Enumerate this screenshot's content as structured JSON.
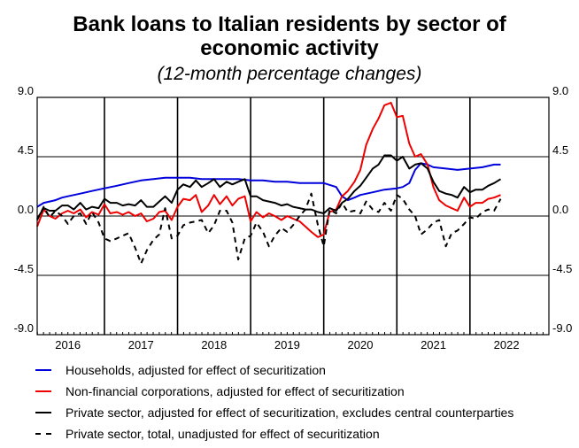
{
  "chart_data": {
    "type": "line",
    "title_line1": "Bank loans to Italian residents by sector of",
    "title_line2": "economic activity",
    "subtitle": "(12-month percentage changes)",
    "ylim": [
      -9.0,
      9.0
    ],
    "y_ticks": [
      "9.0",
      "4.5",
      "0.0",
      "-4.5",
      "-9.0"
    ],
    "y_tick_values": [
      9.0,
      4.5,
      0.0,
      -4.5,
      -9.0
    ],
    "x_range": [
      2015.58,
      2022.58
    ],
    "x_ticks": [
      "2016",
      "2017",
      "2018",
      "2019",
      "2020",
      "2021",
      "2022"
    ],
    "x_tick_values": [
      2016.0,
      2017.0,
      2018.0,
      2019.0,
      2020.0,
      2021.0,
      2022.0
    ],
    "vertical_lines": [
      2016.5,
      2017.5,
      2018.5,
      2019.5,
      2020.5,
      2021.5
    ],
    "grid_y": [
      4.5,
      0.0,
      -4.5
    ],
    "series": [
      {
        "name": "Households, adjusted for effect of securitization",
        "color": "#0000dd",
        "dash": "solid",
        "x": [
          2015.58,
          2015.67,
          2015.75,
          2015.83,
          2015.92,
          2016.0,
          2016.17,
          2016.33,
          2016.5,
          2016.67,
          2016.83,
          2017.0,
          2017.17,
          2017.33,
          2017.5,
          2017.67,
          2017.83,
          2018.0,
          2018.17,
          2018.33,
          2018.5,
          2018.67,
          2018.83,
          2019.0,
          2019.17,
          2019.33,
          2019.5,
          2019.67,
          2019.75,
          2019.83,
          2019.92,
          2020.0,
          2020.17,
          2020.33,
          2020.5,
          2020.58,
          2020.67,
          2020.75,
          2020.83,
          2020.92,
          2021.0,
          2021.17,
          2021.33,
          2021.5,
          2021.67,
          2021.83,
          2021.92
        ],
        "values": [
          0.7,
          1.0,
          1.1,
          1.2,
          1.4,
          1.5,
          1.7,
          1.9,
          2.1,
          2.3,
          2.5,
          2.7,
          2.8,
          2.9,
          2.9,
          2.9,
          2.8,
          2.8,
          2.8,
          2.8,
          2.7,
          2.7,
          2.6,
          2.6,
          2.5,
          2.5,
          2.5,
          2.2,
          1.5,
          1.2,
          1.4,
          1.6,
          1.8,
          2.0,
          2.1,
          2.2,
          2.5,
          3.5,
          4.0,
          3.9,
          3.7,
          3.6,
          3.5,
          3.6,
          3.7,
          3.9,
          3.9
        ]
      },
      {
        "name": "Non-financial corporations, adjusted for effect of securitization",
        "color": "#ee0000",
        "dash": "solid",
        "x": [
          2015.58,
          2015.67,
          2015.75,
          2015.83,
          2015.92,
          2016.0,
          2016.08,
          2016.17,
          2016.25,
          2016.33,
          2016.42,
          2016.5,
          2016.58,
          2016.67,
          2016.75,
          2016.83,
          2016.92,
          2017.0,
          2017.08,
          2017.17,
          2017.25,
          2017.33,
          2017.42,
          2017.5,
          2017.58,
          2017.67,
          2017.75,
          2017.83,
          2017.92,
          2018.0,
          2018.08,
          2018.17,
          2018.25,
          2018.33,
          2018.42,
          2018.5,
          2018.58,
          2018.67,
          2018.75,
          2018.83,
          2018.92,
          2019.0,
          2019.08,
          2019.17,
          2019.25,
          2019.33,
          2019.42,
          2019.5,
          2019.58,
          2019.67,
          2019.75,
          2019.83,
          2019.92,
          2020.0,
          2020.08,
          2020.17,
          2020.25,
          2020.33,
          2020.42,
          2020.5,
          2020.58,
          2020.67,
          2020.75,
          2020.83,
          2020.92,
          2021.0,
          2021.08,
          2021.17,
          2021.25,
          2021.33,
          2021.42,
          2021.5,
          2021.58,
          2021.67,
          2021.75,
          2021.83,
          2021.92
        ],
        "values": [
          -0.8,
          0.5,
          0.0,
          -0.2,
          0.2,
          0.4,
          0.2,
          0.5,
          -0.1,
          0.3,
          0.1,
          0.9,
          0.2,
          0.3,
          0.1,
          0.3,
          0.0,
          0.2,
          -0.4,
          -0.2,
          0.3,
          0.4,
          -0.3,
          0.7,
          1.3,
          1.2,
          1.6,
          0.3,
          0.8,
          1.6,
          0.9,
          1.5,
          0.8,
          1.3,
          1.5,
          -0.4,
          0.3,
          -0.1,
          0.2,
          0.0,
          -0.3,
          0.0,
          -0.2,
          -0.4,
          -0.8,
          -1.2,
          -1.6,
          -1.4,
          0.3,
          0.5,
          1.5,
          1.9,
          2.6,
          3.5,
          5.4,
          6.6,
          7.4,
          8.4,
          8.6,
          7.5,
          7.6,
          5.5,
          4.5,
          4.7,
          3.9,
          2.2,
          1.2,
          0.8,
          0.6,
          0.4,
          1.4,
          0.7,
          1.0,
          1.0,
          1.3,
          1.4,
          1.6
        ]
      },
      {
        "name": "Private sector, adjusted for effect of securitization, excludes central counterparties",
        "color": "#000000",
        "dash": "solid",
        "x": [
          2015.58,
          2015.67,
          2015.75,
          2015.83,
          2015.92,
          2016.0,
          2016.08,
          2016.17,
          2016.25,
          2016.33,
          2016.42,
          2016.5,
          2016.58,
          2016.67,
          2016.75,
          2016.83,
          2016.92,
          2017.0,
          2017.08,
          2017.17,
          2017.25,
          2017.33,
          2017.42,
          2017.5,
          2017.58,
          2017.67,
          2017.75,
          2017.83,
          2017.92,
          2018.0,
          2018.08,
          2018.17,
          2018.25,
          2018.33,
          2018.42,
          2018.5,
          2018.58,
          2018.67,
          2018.75,
          2018.83,
          2018.92,
          2019.0,
          2019.08,
          2019.17,
          2019.25,
          2019.33,
          2019.42,
          2019.5,
          2019.58,
          2019.67,
          2019.75,
          2019.83,
          2019.92,
          2020.0,
          2020.08,
          2020.17,
          2020.25,
          2020.33,
          2020.42,
          2020.5,
          2020.58,
          2020.67,
          2020.75,
          2020.83,
          2020.92,
          2021.0,
          2021.08,
          2021.17,
          2021.25,
          2021.33,
          2021.42,
          2021.5,
          2021.58,
          2021.67,
          2021.75,
          2021.83,
          2021.92
        ],
        "values": [
          -0.2,
          0.6,
          0.4,
          0.4,
          0.8,
          0.8,
          0.5,
          1.0,
          0.5,
          0.7,
          0.6,
          1.3,
          1.0,
          1.0,
          0.8,
          0.9,
          0.8,
          1.2,
          0.7,
          0.7,
          1.1,
          1.5,
          1.0,
          2.0,
          2.4,
          2.2,
          2.7,
          2.2,
          2.5,
          2.8,
          2.2,
          2.6,
          2.4,
          2.6,
          2.8,
          1.5,
          1.5,
          1.2,
          1.1,
          1.0,
          0.8,
          0.9,
          0.7,
          0.6,
          0.5,
          0.5,
          0.3,
          0.2,
          0.6,
          0.4,
          1.0,
          1.3,
          1.9,
          2.3,
          2.9,
          3.6,
          3.9,
          4.6,
          4.6,
          4.2,
          4.5,
          3.6,
          3.9,
          4.0,
          3.6,
          2.6,
          1.9,
          1.7,
          1.6,
          1.4,
          2.2,
          1.8,
          2.0,
          2.0,
          2.3,
          2.5,
          2.8
        ]
      },
      {
        "name": "Private sector, total, unadjusted for effect of securitization",
        "color": "#000000",
        "dash": "dashed",
        "x": [
          2015.58,
          2015.67,
          2015.75,
          2015.83,
          2015.92,
          2016.0,
          2016.08,
          2016.17,
          2016.25,
          2016.33,
          2016.42,
          2016.5,
          2016.58,
          2016.67,
          2016.75,
          2016.83,
          2016.92,
          2017.0,
          2017.08,
          2017.17,
          2017.25,
          2017.33,
          2017.42,
          2017.5,
          2017.58,
          2017.67,
          2017.75,
          2017.83,
          2017.92,
          2018.0,
          2018.08,
          2018.17,
          2018.25,
          2018.33,
          2018.42,
          2018.5,
          2018.58,
          2018.67,
          2018.75,
          2018.83,
          2018.92,
          2019.0,
          2019.08,
          2019.17,
          2019.25,
          2019.33,
          2019.42,
          2019.5,
          2019.58,
          2019.67,
          2019.75,
          2019.83,
          2019.92,
          2020.0,
          2020.08,
          2020.17,
          2020.25,
          2020.33,
          2020.42,
          2020.5,
          2020.58,
          2020.67,
          2020.75,
          2020.83,
          2020.92,
          2021.0,
          2021.08,
          2021.17,
          2021.25,
          2021.33,
          2021.42,
          2021.5,
          2021.58,
          2021.67,
          2021.75,
          2021.83,
          2021.92
        ],
        "values": [
          -0.3,
          0.7,
          -0.1,
          0.4,
          0.0,
          -0.6,
          0.0,
          0.2,
          -0.6,
          0.3,
          -0.5,
          -1.7,
          -1.9,
          -1.7,
          -1.5,
          -1.3,
          -2.4,
          -3.6,
          -2.6,
          -1.8,
          -1.4,
          0.6,
          -1.7,
          -1.5,
          -0.7,
          -0.5,
          -0.4,
          -0.3,
          -1.3,
          -0.7,
          0.4,
          0.4,
          -0.5,
          -3.3,
          -1.7,
          -1.5,
          -0.5,
          -1.2,
          -2.3,
          -1.5,
          -0.9,
          -1.2,
          -0.7,
          0.0,
          0.5,
          1.7,
          -0.7,
          -2.3,
          0.5,
          0.2,
          1.0,
          0.3,
          0.4,
          0.2,
          1.1,
          0.5,
          0.3,
          1.0,
          0.4,
          1.6,
          1.3,
          0.5,
          0.0,
          -1.4,
          -1.0,
          -0.5,
          -0.3,
          -2.3,
          -1.3,
          -1.1,
          -0.6,
          -0.1,
          -0.2,
          0.3,
          0.5,
          0.4,
          1.3
        ]
      }
    ]
  }
}
